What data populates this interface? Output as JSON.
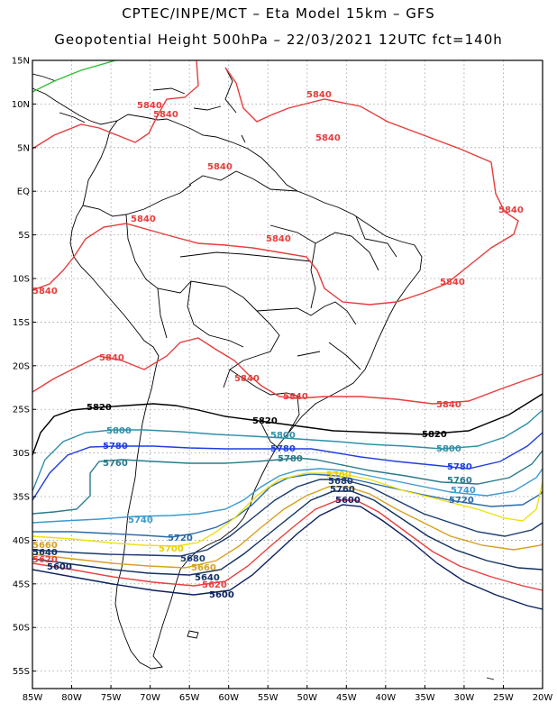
{
  "title": {
    "line1": "CPTEC/INPE/MCT –  Eta Model 15km – GFS",
    "line2": "Geopotential Height 500hPa – 22/03/2021 12UTC fct=140h"
  },
  "map": {
    "lat_labels": [
      "15N",
      "10N",
      "5N",
      "EQ",
      "5S",
      "10S",
      "15S",
      "20S",
      "25S",
      "30S",
      "35S",
      "40S",
      "45S",
      "50S",
      "55S"
    ],
    "lon_labels": [
      "85W",
      "80W",
      "75W",
      "70W",
      "65W",
      "60W",
      "55W",
      "50W",
      "45W",
      "40W",
      "35W",
      "30W",
      "25W",
      "20W"
    ],
    "grid": true,
    "lon_range": [
      -85,
      -20
    ],
    "lat_range": [
      -57,
      15
    ]
  },
  "contours": [
    {
      "level": "5840",
      "color": "#e83c3c",
      "labels": [
        "5840",
        "5840",
        "5840",
        "5840",
        "5840",
        "5840",
        "5840",
        "5840",
        "5840",
        "5840",
        "5840",
        "5840",
        "5840",
        "5840"
      ]
    },
    {
      "level": "5820",
      "color": "#000000",
      "labels": [
        "5820",
        "5820",
        "5820"
      ]
    },
    {
      "level": "5800",
      "color": "#2f8fa8",
      "labels": [
        "5800",
        "5800",
        "5800"
      ]
    },
    {
      "level": "5780",
      "color": "#1e3ee0",
      "labels": [
        "5780",
        "5780",
        "5780",
        "5780"
      ]
    },
    {
      "level": "5760",
      "color": "#2a7a8a",
      "labels": [
        "5760",
        "5760",
        "5760"
      ]
    },
    {
      "level": "5740",
      "color": "#3a9ad0",
      "labels": [
        "5740",
        "5740"
      ]
    },
    {
      "level": "5720",
      "color": "#2a6aa8",
      "labels": [
        "5720",
        "5720"
      ]
    },
    {
      "level": "5700",
      "color": "#f0e010",
      "labels": [
        "5700",
        "5700"
      ]
    },
    {
      "level": "5680",
      "color": "#1a3a70",
      "labels": [
        "5680",
        "5680"
      ]
    },
    {
      "level": "5660",
      "color": "#d8a020",
      "labels": [
        "5660",
        "5660"
      ]
    },
    {
      "level": "5640",
      "color": "#103060",
      "labels": [
        "5640",
        "5640"
      ]
    },
    {
      "level": "5620",
      "color": "#e84040",
      "labels": [
        "5620",
        "5620"
      ]
    },
    {
      "level": "5600",
      "color": "#0a2060",
      "labels": [
        "5600",
        "5600",
        "5600"
      ]
    },
    {
      "level": "5860",
      "color": "#30c030",
      "labels": []
    }
  ]
}
